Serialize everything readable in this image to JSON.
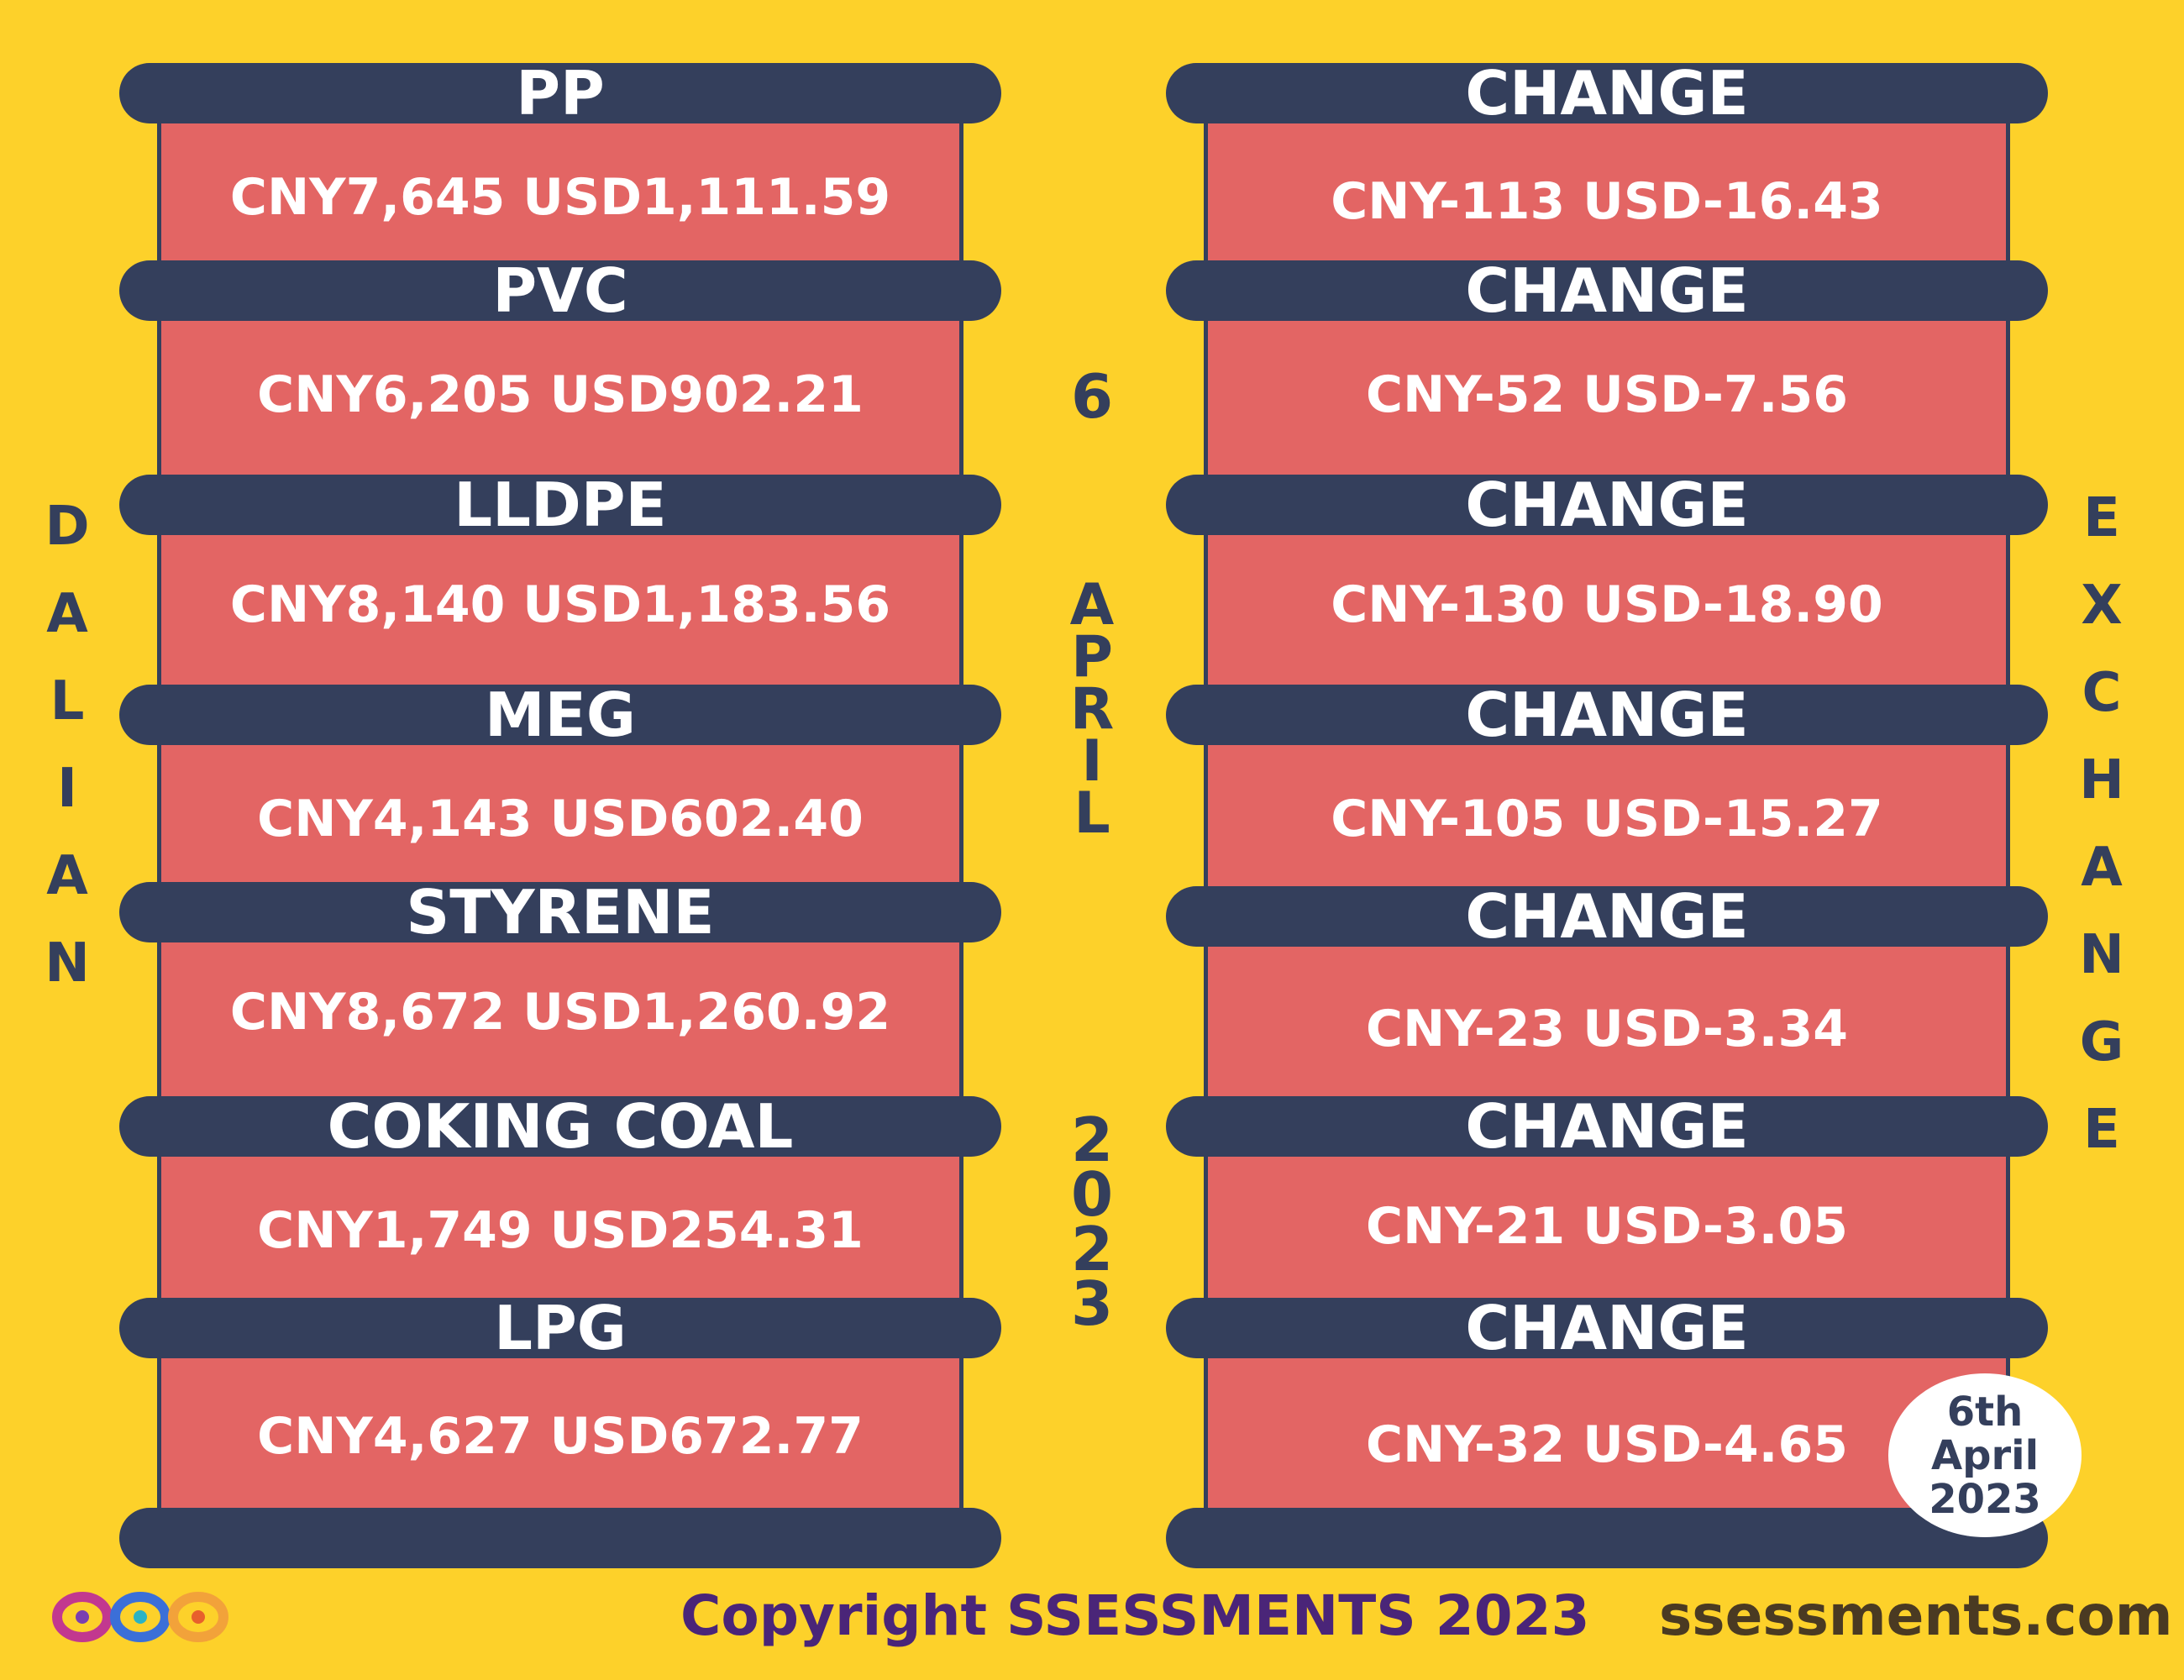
{
  "dalian_label": [
    "D",
    "A",
    "L",
    "I",
    "A",
    "N"
  ],
  "exchange_label": [
    "E",
    "X",
    "C",
    "H",
    "A",
    "N",
    "G",
    "E"
  ],
  "date": {
    "day": "6",
    "month": [
      "A",
      "P",
      "R",
      "I",
      "L"
    ],
    "year": [
      "2",
      "0",
      "2",
      "3"
    ]
  },
  "products": [
    {
      "name": "PP",
      "price": "CNY7,645  USD1,111.59",
      "change_label": "CHANGE",
      "change": "CNY-113  USD-16.43"
    },
    {
      "name": "PVC",
      "price": "CNY6,205  USD902.21",
      "change_label": "CHANGE",
      "change": "CNY-52  USD-7.56"
    },
    {
      "name": "LLDPE",
      "price": "CNY8,140  USD1,183.56",
      "change_label": "CHANGE",
      "change": "CNY-130  USD-18.90"
    },
    {
      "name": "MEG",
      "price": "CNY4,143  USD602.40",
      "change_label": "CHANGE",
      "change": "CNY-105  USD-15.27"
    },
    {
      "name": "STYRENE",
      "price": "CNY8,672  USD1,260.92",
      "change_label": "CHANGE",
      "change": "CNY-23  USD-3.34"
    },
    {
      "name": "COKING COAL",
      "price": "CNY1,749  USD254.31",
      "change_label": "CHANGE",
      "change": "CNY-21  USD-3.05"
    },
    {
      "name": "LPG",
      "price": "CNY4,627  USD672.77",
      "change_label": "CHANGE",
      "change": "CNY-32  USD-4.65"
    }
  ],
  "badge": {
    "line1": "6th",
    "line2": "April",
    "line3": "2023"
  },
  "copyright": "Copyright SSESSMENTS 2023",
  "website": "ssessments.com",
  "colors": {
    "background": "#fdd12a",
    "band": "#343f5c",
    "panel": "#e36564",
    "text": "#ffffff",
    "copyright": "#4a2578"
  },
  "logo_icon": "infinity-loops-logo-icon"
}
